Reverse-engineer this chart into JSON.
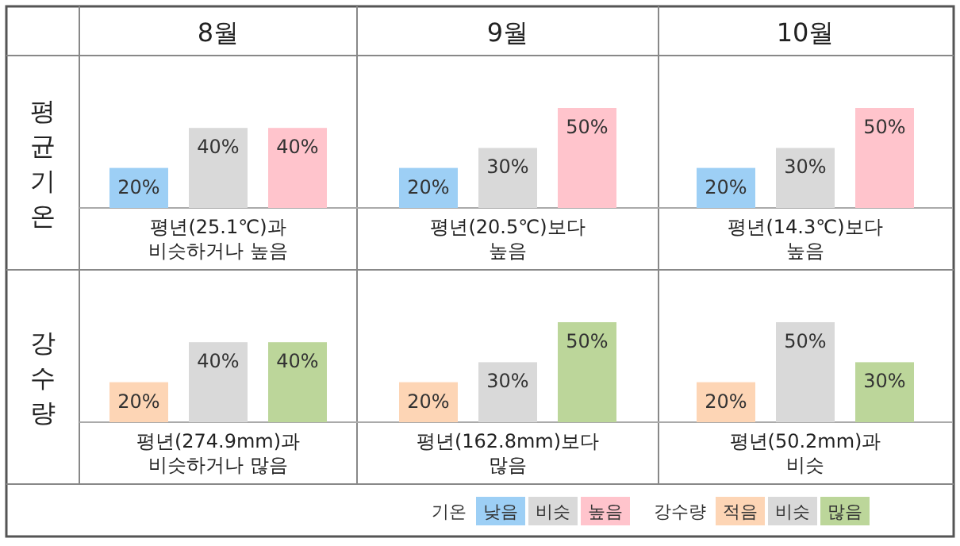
{
  "chart_data": [
    {
      "type": "bar",
      "title": "8월",
      "ylabel": "평균기온",
      "categories": [
        null,
        null,
        null
      ],
      "values": [
        20,
        40,
        40
      ],
      "value_labels": [
        "20%",
        "40%",
        "40%"
      ],
      "colors": [
        "#9dcff5",
        "#d9d9d9",
        "#ffc4cc"
      ],
      "annotations": [
        "평년(25.1℃)과\n비슷하거나 높음"
      ]
    },
    {
      "type": "bar",
      "title": "9월",
      "categories": [
        null,
        null,
        null
      ],
      "values": [
        20,
        30,
        50
      ],
      "value_labels": [
        "20%",
        "30%",
        "50%"
      ],
      "colors": [
        "#9dcff5",
        "#d9d9d9",
        "#ffc4cc"
      ],
      "annotations": [
        "평년(20.5℃)보다\n높음"
      ]
    },
    {
      "type": "bar",
      "title": "10월",
      "categories": [
        null,
        null,
        null
      ],
      "values": [
        20,
        30,
        50
      ],
      "value_labels": [
        "20%",
        "30%",
        "50%"
      ],
      "colors": [
        "#9dcff5",
        "#d9d9d9",
        "#ffc4cc"
      ],
      "annotations": [
        "평년(14.3℃)보다\n높음"
      ]
    },
    {
      "type": "bar",
      "ylabel": "강수량",
      "categories": [
        null,
        null,
        null
      ],
      "values": [
        20,
        40,
        40
      ],
      "value_labels": [
        "20%",
        "40%",
        "40%"
      ],
      "colors": [
        "#fdd5b5",
        "#d9d9d9",
        "#bcd69a"
      ],
      "annotations": [
        "평년(274.9mm)과\n비슷하거나 많음"
      ]
    },
    {
      "type": "bar",
      "categories": [
        null,
        null,
        null
      ],
      "values": [
        20,
        30,
        50
      ],
      "value_labels": [
        "20%",
        "30%",
        "50%"
      ],
      "colors": [
        "#fdd5b5",
        "#d9d9d9",
        "#bcd69a"
      ],
      "annotations": [
        "평년(162.8mm)보다\n많음"
      ]
    },
    {
      "type": "bar",
      "categories": [
        null,
        null,
        null
      ],
      "values": [
        20,
        50,
        30
      ],
      "value_labels": [
        "20%",
        "50%",
        "30%"
      ],
      "colors": [
        "#fdd5b5",
        "#d9d9d9",
        "#bcd69a"
      ],
      "annotations": [
        "평년(50.2mm)과\n비슷"
      ]
    },
    {
      "type": "other",
      "annotations": [
        "기온",
        "낮음",
        "비슷",
        "높음",
        "강수량",
        "적음",
        "비슷",
        "많음"
      ]
    }
  ]
}
